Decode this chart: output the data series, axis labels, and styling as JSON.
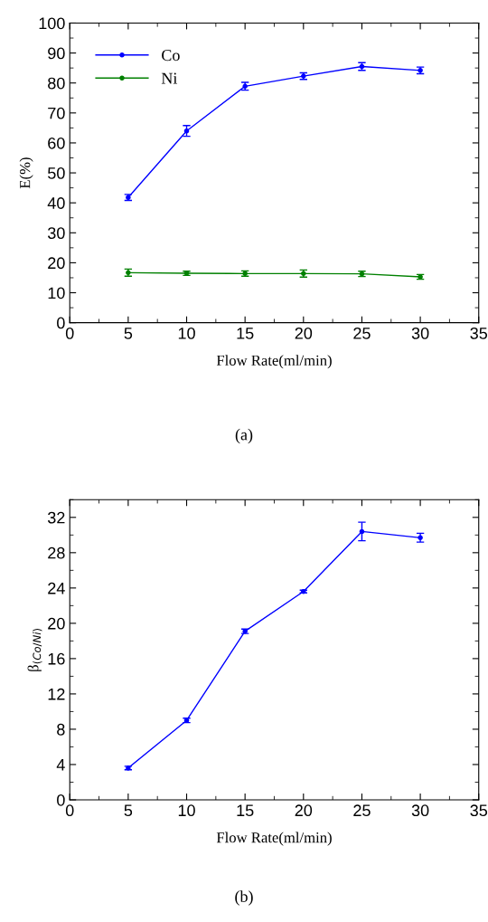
{
  "chart_data": [
    {
      "type": "line",
      "xlabel": "Flow Rate(ml/min)",
      "ylabel": "E(%)",
      "x": [
        5,
        10,
        15,
        20,
        25,
        30
      ],
      "series": [
        {
          "name": "Co",
          "color": "#0000ff",
          "values": [
            41.8,
            64.0,
            78.9,
            82.3,
            85.5,
            84.2
          ],
          "errors": [
            1.0,
            1.8,
            1.3,
            1.1,
            1.3,
            1.1
          ]
        },
        {
          "name": "Ni",
          "color": "#008000",
          "values": [
            16.7,
            16.5,
            16.4,
            16.4,
            16.3,
            15.3
          ],
          "errors": [
            1.2,
            0.7,
            0.9,
            1.2,
            0.9,
            0.8
          ]
        }
      ],
      "xlim": [
        0,
        35
      ],
      "xticks": [
        0,
        5,
        10,
        15,
        20,
        25,
        30,
        35
      ],
      "ylim": [
        0,
        100
      ],
      "yticks": [
        0,
        10,
        20,
        30,
        40,
        50,
        60,
        70,
        80,
        90,
        100
      ],
      "grid": false,
      "legend": "top left",
      "marker": "circle",
      "line_style": "solid",
      "annotations": [
        "(a)"
      ]
    },
    {
      "type": "line",
      "xlabel": "Flow Rate(ml/min)",
      "ylabel": "β$_{(Co/Ni)}$",
      "x": [
        5,
        10,
        15,
        20,
        25,
        30
      ],
      "series": [
        {
          "color": "#0000ff",
          "values": [
            3.6,
            9.0,
            19.1,
            23.6,
            30.4,
            29.7
          ],
          "errors": [
            0.2,
            0.25,
            0.25,
            0.15,
            1.05,
            0.5
          ]
        }
      ],
      "xlim": [
        0,
        35
      ],
      "xticks": [
        0,
        5,
        10,
        15,
        20,
        25,
        30,
        35
      ],
      "ylim": [
        0,
        34
      ],
      "yticks": [
        0,
        4,
        8,
        12,
        16,
        20,
        24,
        28,
        32
      ],
      "grid": false,
      "legend": false,
      "marker": "circle",
      "line_style": "solid",
      "annotations": [
        "(b)"
      ]
    }
  ]
}
